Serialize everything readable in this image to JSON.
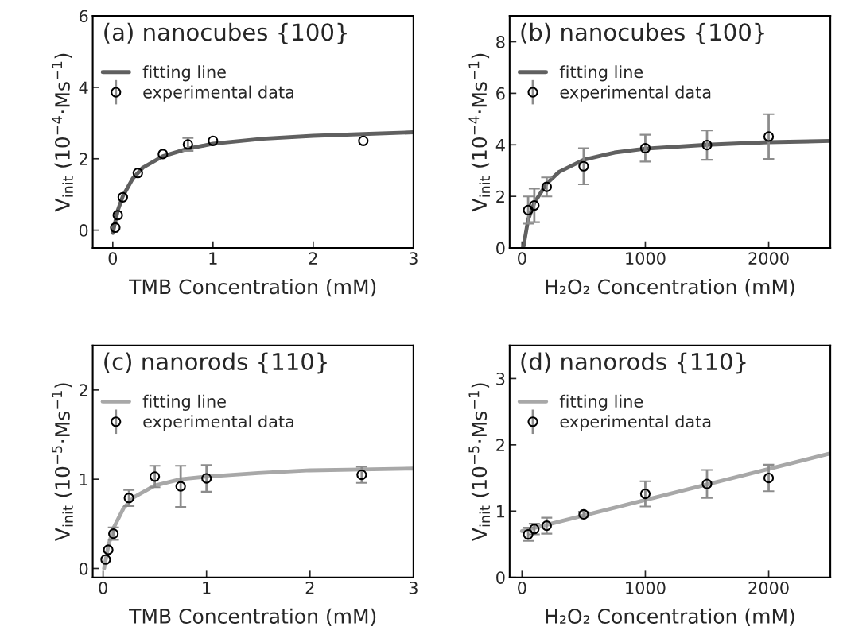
{
  "chart_data": [
    {
      "type": "scatter",
      "title": "(a) nanocubes {100}",
      "xlabel": "TMB Concentration (mM)",
      "ylabel": "V$_{init}$ (10$^{−4}$·Ms$^{−1}$)",
      "xlim": [
        -0.2,
        3
      ],
      "xticks": [
        0,
        1,
        2,
        3
      ],
      "ylim": [
        -0.5,
        6
      ],
      "yticks": [
        0,
        2,
        4,
        6
      ],
      "legend": "top left",
      "series": [
        {
          "name": "fitting line",
          "type": "line",
          "color": "#606060",
          "x": [
            0,
            0.05,
            0.1,
            0.2,
            0.3,
            0.5,
            0.75,
            1,
            1.5,
            2,
            2.5,
            3
          ],
          "values": [
            -0.08,
            0.55,
            0.95,
            1.45,
            1.75,
            2.07,
            2.28,
            2.42,
            2.56,
            2.64,
            2.69,
            2.74
          ]
        },
        {
          "name": "experimental data",
          "marker": "circle",
          "color": "#000000",
          "x": [
            0.025,
            0.05,
            0.1,
            0.25,
            0.5,
            0.75,
            1,
            2.5
          ],
          "values": [
            0.07,
            0.42,
            0.92,
            1.6,
            2.13,
            2.4,
            2.5,
            2.5
          ],
          "errors": [
            null,
            null,
            null,
            null,
            null,
            0.18,
            null,
            null
          ]
        }
      ]
    },
    {
      "type": "scatter",
      "title": "(b) nanocubes {100}",
      "xlabel": "H₂O₂ Concentration (mM)",
      "ylabel": "V$_{init}$ (10$^{−4}$·Ms$^{−1}$)",
      "xlim": [
        -100,
        2500
      ],
      "xticks": [
        0,
        1000,
        2000
      ],
      "ylim": [
        0,
        9
      ],
      "yticks": [
        0,
        2,
        4,
        6,
        8
      ],
      "legend": "top left",
      "series": [
        {
          "name": "fitting line",
          "type": "line",
          "color": "#606060",
          "x": [
            10,
            50,
            100,
            200,
            300,
            500,
            750,
            1000,
            1500,
            2000,
            2500
          ],
          "values": [
            0,
            1.1,
            1.75,
            2.5,
            2.95,
            3.42,
            3.7,
            3.85,
            4.0,
            4.1,
            4.15
          ]
        },
        {
          "name": "experimental data",
          "marker": "circle",
          "color": "#000000",
          "x": [
            50,
            100,
            200,
            500,
            1000,
            1500,
            2000
          ],
          "values": [
            1.47,
            1.65,
            2.37,
            3.17,
            3.87,
            3.99,
            4.32
          ],
          "errors": [
            0.53,
            0.65,
            0.37,
            0.7,
            0.52,
            0.57,
            0.87
          ]
        }
      ]
    },
    {
      "type": "scatter",
      "title": "(c) nanorods {110}",
      "xlabel": "TMB Concentration (mM)",
      "ylabel": "V$_{init}$ (10$^{−5}$·Ms$^{−1}$)",
      "xlim": [
        -0.1,
        3
      ],
      "xticks": [
        0,
        1,
        2,
        3
      ],
      "ylim": [
        -0.1,
        2.5
      ],
      "yticks": [
        0,
        1,
        2
      ],
      "legend": "top left",
      "series": [
        {
          "name": "fitting line",
          "type": "line",
          "color": "#a8a8a8",
          "x": [
            0.01,
            0.05,
            0.1,
            0.2,
            0.3,
            0.5,
            0.75,
            1,
            1.5,
            2,
            2.5,
            3
          ],
          "values": [
            0,
            0.25,
            0.45,
            0.68,
            0.8,
            0.93,
            1.0,
            1.03,
            1.07,
            1.1,
            1.11,
            1.12
          ]
        },
        {
          "name": "experimental data",
          "marker": "circle",
          "color": "#000000",
          "x": [
            0.025,
            0.05,
            0.1,
            0.25,
            0.5,
            0.75,
            1,
            2.5
          ],
          "values": [
            0.1,
            0.21,
            0.39,
            0.79,
            1.03,
            0.92,
            1.01,
            1.05
          ],
          "errors": [
            null,
            null,
            0.07,
            0.09,
            0.12,
            0.23,
            0.15,
            0.09
          ]
        }
      ]
    },
    {
      "type": "scatter",
      "title": "(d) nanorods {110}",
      "xlabel": "H₂O₂ Concentration (mM)",
      "ylabel": "V$_{init}$ (10$^{−5}$·Ms$^{−1}$)",
      "xlim": [
        -100,
        2500
      ],
      "xticks": [
        0,
        1000,
        2000
      ],
      "ylim": [
        0,
        3.5
      ],
      "yticks": [
        0,
        1,
        2,
        3
      ],
      "legend": "top left",
      "series": [
        {
          "name": "fitting line",
          "type": "line",
          "color": "#a8a8a8",
          "x": [
            0,
            2500
          ],
          "values": [
            0.7,
            1.87
          ]
        },
        {
          "name": "experimental data",
          "marker": "circle",
          "color": "#000000",
          "x": [
            50,
            100,
            200,
            500,
            1000,
            1500,
            2000
          ],
          "values": [
            0.65,
            0.73,
            0.78,
            0.95,
            1.26,
            1.41,
            1.5
          ],
          "errors": [
            0.1,
            0.08,
            0.12,
            0.04,
            0.19,
            0.21,
            0.2
          ]
        }
      ]
    }
  ]
}
